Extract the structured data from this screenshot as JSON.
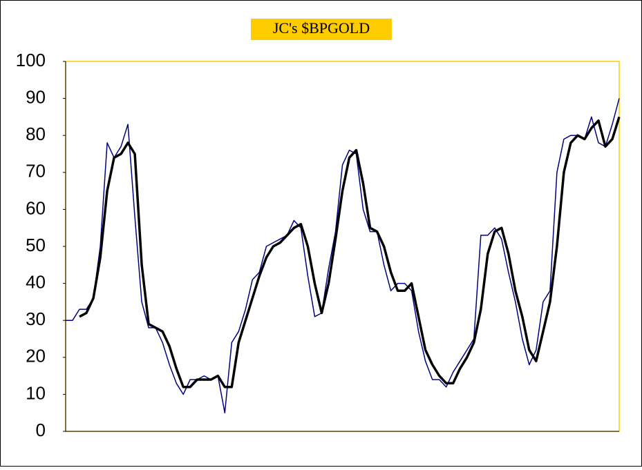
{
  "chart_data": {
    "type": "line",
    "title": "JC's $BPGOLD",
    "ylim": [
      0,
      100
    ],
    "yticks": [
      0,
      10,
      20,
      30,
      40,
      50,
      60,
      70,
      80,
      90,
      100
    ],
    "grid": false,
    "legend": false,
    "series": [
      {
        "color": "#000080",
        "width": 1.5,
        "values": [
          30,
          30,
          33,
          33,
          36,
          50,
          78,
          74,
          77,
          83,
          58,
          35,
          28,
          28,
          24,
          18,
          13,
          10,
          14,
          14,
          15,
          14,
          15,
          5,
          24,
          27,
          33,
          41,
          43,
          50,
          51,
          52,
          53,
          57,
          55,
          42,
          31,
          32,
          44,
          54,
          72,
          76,
          75,
          60,
          54,
          54,
          45,
          38,
          40,
          40,
          38,
          27,
          19,
          14,
          14,
          12,
          16,
          19,
          22,
          25,
          53,
          53,
          55,
          52,
          43,
          35,
          25,
          18,
          22,
          35,
          38,
          70,
          79,
          80,
          80,
          79,
          85,
          78,
          77,
          83,
          90
        ]
      },
      {
        "color": "#000000",
        "width": 3.5,
        "values": [
          null,
          null,
          31,
          32,
          36,
          47,
          65,
          74,
          75,
          78,
          75,
          45,
          29,
          28,
          27,
          23,
          17,
          12,
          12,
          14,
          14,
          14,
          15,
          12,
          12,
          24,
          30,
          36,
          42,
          47,
          50,
          51,
          53,
          55,
          56,
          50,
          40,
          32,
          40,
          52,
          65,
          74,
          76,
          67,
          55,
          54,
          50,
          43,
          38,
          38,
          40,
          31,
          22,
          18,
          15,
          13,
          13,
          17,
          20,
          24,
          33,
          48,
          54,
          55,
          48,
          38,
          31,
          22,
          19,
          27,
          35,
          50,
          70,
          78,
          80,
          79,
          82,
          84,
          77,
          79,
          85
        ]
      }
    ]
  }
}
